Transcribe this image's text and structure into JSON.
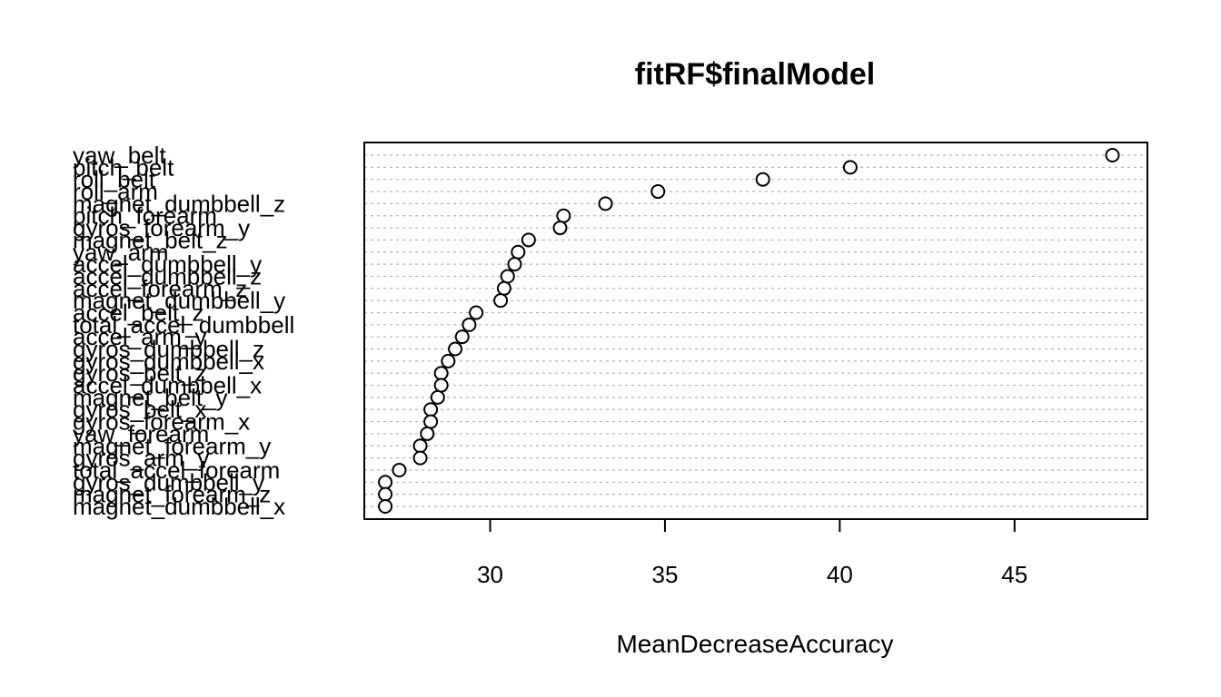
{
  "chart_data": {
    "type": "scatter",
    "style": "dotchart",
    "title": "fitRF$finalModel",
    "xlabel": "MeanDecreaseAccuracy",
    "ylabel": "",
    "xlim": [
      26.4,
      48.8
    ],
    "xticks": [
      30,
      35,
      40,
      45
    ],
    "grid": "dashed horizontal lines per category",
    "categories": [
      "yaw_belt",
      "pitch_belt",
      "roll_belt",
      "roll_arm",
      "magnet_dumbbell_z",
      "pitch_forearm",
      "gyros_forearm_y",
      "magnet_belt_z",
      "yaw_arm",
      "accel_dumbbell_y",
      "accel_dumbbell_z",
      "accel_forearm_z",
      "magnet_dumbbell_y",
      "accel_belt_z",
      "total_accel_dumbbell",
      "accel_arm_y",
      "gyros_dumbbell_z",
      "gyros_dumbbell_x",
      "gyros_belt_z",
      "accel_dumbbell_x",
      "magnet_belt_y",
      "gyros_belt_x",
      "gyros_forearm_x",
      "yaw_forearm",
      "magnet_forearm_y",
      "gyros_arm_y",
      "total_accel_forearm",
      "gyros_dumbbell_y",
      "magnet_forearm_z",
      "magnet_dumbbell_x"
    ],
    "values": [
      47.8,
      40.3,
      37.8,
      34.8,
      33.3,
      32.1,
      32.0,
      31.1,
      30.8,
      30.7,
      30.5,
      30.4,
      30.3,
      29.6,
      29.4,
      29.2,
      29.0,
      28.8,
      28.6,
      28.6,
      28.5,
      28.3,
      28.3,
      28.2,
      28.0,
      28.0,
      27.4,
      27.0,
      27.0,
      27.0
    ]
  }
}
